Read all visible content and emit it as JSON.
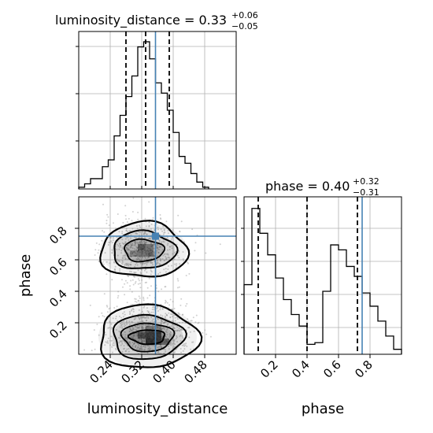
{
  "chart_data": [
    {
      "type": "histogram",
      "panel": "luminosity_distance-marginal",
      "title": {
        "text": "luminosity_distance = 0.33",
        "plus": "+0.06",
        "minus": "−0.05"
      },
      "xlim": [
        0.16,
        0.56
      ],
      "bins": [
        {
          "x0": 0.16,
          "x1": 0.175,
          "count": 0.01
        },
        {
          "x0": 0.175,
          "x1": 0.19,
          "count": 0.03
        },
        {
          "x0": 0.19,
          "x1": 0.205,
          "count": 0.06
        },
        {
          "x0": 0.205,
          "x1": 0.22,
          "count": 0.06
        },
        {
          "x0": 0.22,
          "x1": 0.235,
          "count": 0.13
        },
        {
          "x0": 0.235,
          "x1": 0.25,
          "count": 0.17
        },
        {
          "x0": 0.25,
          "x1": 0.265,
          "count": 0.31
        },
        {
          "x0": 0.265,
          "x1": 0.28,
          "count": 0.43
        },
        {
          "x0": 0.28,
          "x1": 0.295,
          "count": 0.54
        },
        {
          "x0": 0.295,
          "x1": 0.31,
          "count": 0.66
        },
        {
          "x0": 0.31,
          "x1": 0.325,
          "count": 0.83
        },
        {
          "x0": 0.325,
          "x1": 0.34,
          "count": 0.86
        },
        {
          "x0": 0.34,
          "x1": 0.355,
          "count": 0.76
        },
        {
          "x0": 0.355,
          "x1": 0.37,
          "count": 0.62
        },
        {
          "x0": 0.37,
          "x1": 0.385,
          "count": 0.56
        },
        {
          "x0": 0.385,
          "x1": 0.4,
          "count": 0.46
        },
        {
          "x0": 0.4,
          "x1": 0.415,
          "count": 0.33
        },
        {
          "x0": 0.415,
          "x1": 0.43,
          "count": 0.19
        },
        {
          "x0": 0.43,
          "x1": 0.445,
          "count": 0.15
        },
        {
          "x0": 0.445,
          "x1": 0.46,
          "count": 0.09
        },
        {
          "x0": 0.46,
          "x1": 0.475,
          "count": 0.04
        },
        {
          "x0": 0.475,
          "x1": 0.49,
          "count": 0.01
        }
      ],
      "ylim": [
        0,
        0.92
      ],
      "quantiles": [
        0.28,
        0.33,
        0.39
      ],
      "truth": 0.355,
      "grid": true
    },
    {
      "type": "histogram",
      "panel": "phase-marginal",
      "title": {
        "text": "phase = 0.40",
        "plus": "+0.32",
        "minus": "−0.31"
      },
      "xlim": [
        0.0,
        1.0
      ],
      "bins": [
        {
          "x0": 0.0,
          "x1": 0.05,
          "count": 0.42
        },
        {
          "x0": 0.05,
          "x1": 0.1,
          "count": 0.88
        },
        {
          "x0": 0.1,
          "x1": 0.15,
          "count": 0.73
        },
        {
          "x0": 0.15,
          "x1": 0.2,
          "count": 0.6
        },
        {
          "x0": 0.2,
          "x1": 0.25,
          "count": 0.46
        },
        {
          "x0": 0.25,
          "x1": 0.3,
          "count": 0.33
        },
        {
          "x0": 0.3,
          "x1": 0.35,
          "count": 0.24
        },
        {
          "x0": 0.35,
          "x1": 0.4,
          "count": 0.17
        },
        {
          "x0": 0.4,
          "x1": 0.45,
          "count": 0.06
        },
        {
          "x0": 0.45,
          "x1": 0.5,
          "count": 0.07
        },
        {
          "x0": 0.5,
          "x1": 0.55,
          "count": 0.38
        },
        {
          "x0": 0.55,
          "x1": 0.6,
          "count": 0.66
        },
        {
          "x0": 0.6,
          "x1": 0.65,
          "count": 0.63
        },
        {
          "x0": 0.65,
          "x1": 0.7,
          "count": 0.53
        },
        {
          "x0": 0.7,
          "x1": 0.75,
          "count": 0.47
        },
        {
          "x0": 0.75,
          "x1": 0.8,
          "count": 0.37
        },
        {
          "x0": 0.8,
          "x1": 0.85,
          "count": 0.29
        },
        {
          "x0": 0.85,
          "x1": 0.9,
          "count": 0.2
        },
        {
          "x0": 0.9,
          "x1": 0.95,
          "count": 0.11
        },
        {
          "x0": 0.95,
          "x1": 1.0,
          "count": 0.03
        }
      ],
      "ylim": [
        0,
        0.95
      ],
      "quantiles": [
        0.09,
        0.4,
        0.72
      ],
      "truth": 0.75,
      "xlabel": "phase",
      "xticks": [
        "0.2",
        "0.4",
        "0.6",
        "0.8"
      ],
      "xtick_values": [
        0.2,
        0.4,
        0.6,
        0.8
      ],
      "grid": true
    },
    {
      "type": "scatter-contour",
      "panel": "joint",
      "xlabel": "luminosity_distance",
      "ylabel": "phase",
      "xlim": [
        0.16,
        0.56
      ],
      "ylim": [
        0.0,
        1.0
      ],
      "xticks": [
        "0.24",
        "0.32",
        "0.40",
        "0.48"
      ],
      "xtick_values": [
        0.24,
        0.32,
        0.4,
        0.48
      ],
      "yticks": [
        "0.2",
        "0.4",
        "0.6",
        "0.8"
      ],
      "ytick_values": [
        0.2,
        0.4,
        0.6,
        0.8
      ],
      "truth": {
        "x": 0.355,
        "y": 0.75
      },
      "modes": [
        {
          "cx": 0.325,
          "cy": 0.66,
          "contours": [
            {
              "rx": 0.11,
              "ry": 0.175,
              "stroke": 2.2
            },
            {
              "rx": 0.08,
              "ry": 0.12,
              "stroke": 2
            },
            {
              "rx": 0.05,
              "ry": 0.07,
              "stroke": 1.8
            }
          ]
        },
        {
          "cx": 0.335,
          "cy": 0.11,
          "contours": [
            {
              "rx": 0.125,
              "ry": 0.2,
              "stroke": 2.2
            },
            {
              "rx": 0.09,
              "ry": 0.14,
              "stroke": 2
            },
            {
              "rx": 0.065,
              "ry": 0.09,
              "stroke": 1.8
            },
            {
              "rx": 0.045,
              "ry": 0.045,
              "stroke": 2
            }
          ]
        }
      ],
      "grid": true
    }
  ],
  "colors": {
    "hist": "#000000",
    "truth": "#4682b4",
    "grid": "#b0b0b0",
    "points": "#9a9a9a"
  }
}
